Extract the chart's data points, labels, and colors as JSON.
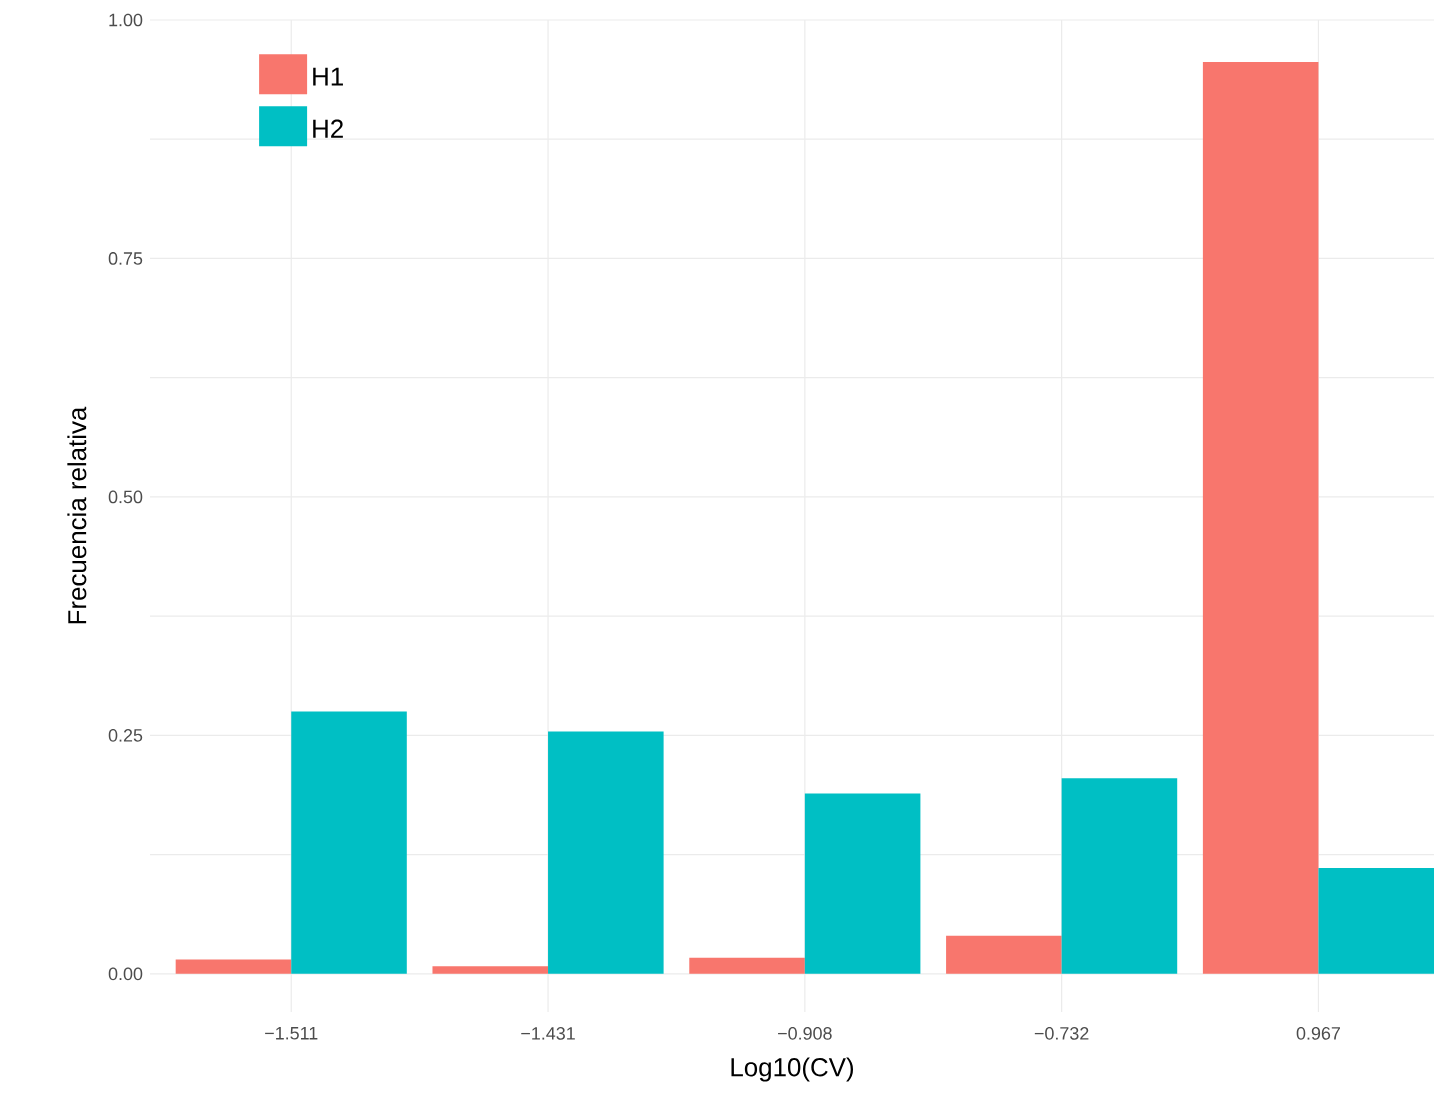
{
  "chart_data": {
    "type": "bar",
    "xlabel": "Log10(CV)",
    "ylabel": "Frecuencia relativa",
    "categories": [
      "−1.511",
      "−1.431",
      "−0.908",
      "−0.732",
      "0.967"
    ],
    "series": [
      {
        "name": "H1",
        "color": "#f8766d",
        "values": [
          0.015,
          0.008,
          0.017,
          0.04,
          0.956
        ]
      },
      {
        "name": "H2",
        "color": "#00bfc4",
        "values": [
          0.275,
          0.254,
          0.189,
          0.205,
          0.111
        ]
      }
    ],
    "ylim": [
      -0.04,
      1.0
    ],
    "yticks": [
      {
        "value": 0,
        "label": "0.00"
      },
      {
        "value": 0.125,
        "label": null
      },
      {
        "value": 0.25,
        "label": "0.25"
      },
      {
        "value": 0.375,
        "label": null
      },
      {
        "value": 0.5,
        "label": "0.50"
      },
      {
        "value": 0.625,
        "label": null
      },
      {
        "value": 0.75,
        "label": "0.75"
      },
      {
        "value": 0.875,
        "label": null
      },
      {
        "value": 1.0,
        "label": "1.00"
      }
    ],
    "grid": true,
    "legend": "top left"
  }
}
